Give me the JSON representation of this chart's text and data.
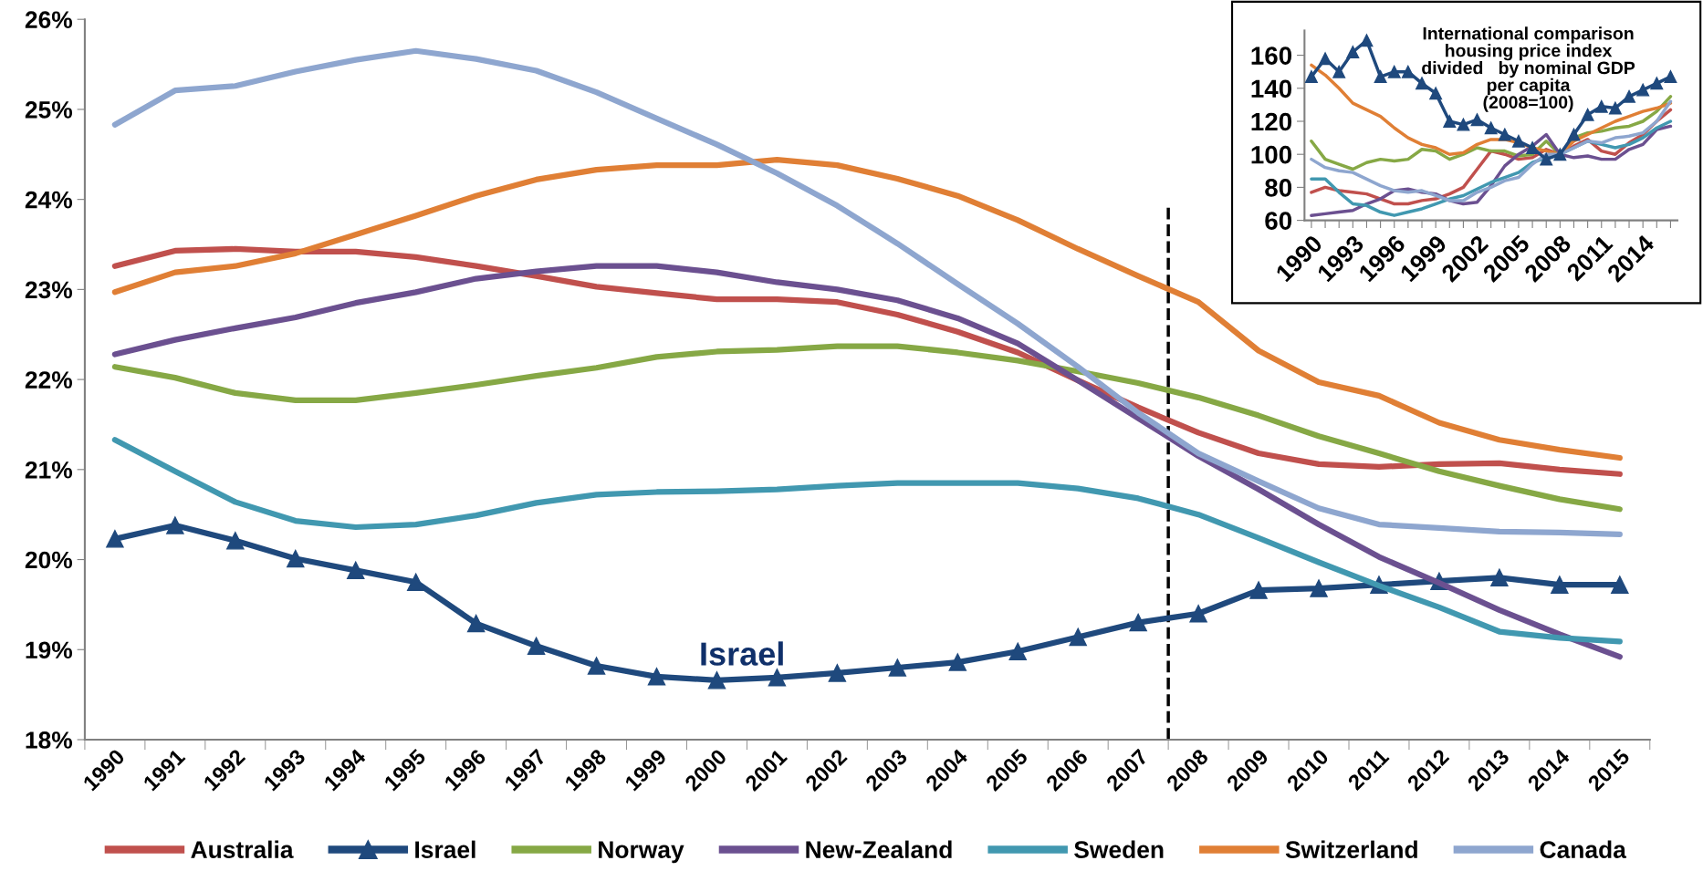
{
  "chart_data": [
    {
      "type": "line",
      "categories": [
        "1990",
        "1991",
        "1992",
        "1993",
        "1994",
        "1995",
        "1996",
        "1997",
        "1998",
        "1999",
        "2000",
        "2001",
        "2002",
        "2003",
        "2004",
        "2005",
        "2006",
        "2007",
        "2008",
        "2009",
        "2010",
        "2011",
        "2012",
        "2013",
        "2014",
        "2015"
      ],
      "ylim": [
        18,
        26
      ],
      "yticks": [
        {
          "value": 18,
          "label": "18%"
        },
        {
          "value": 19,
          "label": "19%"
        },
        {
          "value": 20,
          "label": "20%"
        },
        {
          "value": 21,
          "label": "21%"
        },
        {
          "value": 22,
          "label": "22%"
        },
        {
          "value": 23,
          "label": "23%"
        },
        {
          "value": 24,
          "label": "24%"
        },
        {
          "value": 25,
          "label": "25%"
        },
        {
          "value": 26,
          "label": "26%"
        }
      ],
      "grid": false,
      "legend": "bottom",
      "series": [
        {
          "name": "Australia",
          "color": "#c0504d",
          "values": [
            23.26,
            23.43,
            23.45,
            23.42,
            23.42,
            23.36,
            23.26,
            23.15,
            23.03,
            22.96,
            22.89,
            22.89,
            22.86,
            22.72,
            22.53,
            22.3,
            21.99,
            21.69,
            21.41,
            21.18,
            21.06,
            21.03,
            21.06,
            21.07,
            21.0,
            20.95
          ]
        },
        {
          "name": "Israel",
          "color": "#1f497d",
          "marker": "triangle",
          "values": [
            20.23,
            20.38,
            20.21,
            20.01,
            19.88,
            19.75,
            19.29,
            19.04,
            18.82,
            18.7,
            18.66,
            18.69,
            18.74,
            18.8,
            18.86,
            18.98,
            19.14,
            19.3,
            19.4,
            19.66,
            19.68,
            19.72,
            19.76,
            19.8,
            19.72,
            19.72
          ]
        },
        {
          "name": "Norway",
          "color": "#86a845",
          "values": [
            22.14,
            22.02,
            21.85,
            21.77,
            21.77,
            21.85,
            21.94,
            22.04,
            22.13,
            22.25,
            22.31,
            22.33,
            22.37,
            22.37,
            22.3,
            22.21,
            22.09,
            21.96,
            21.8,
            21.6,
            21.37,
            21.18,
            20.98,
            20.82,
            20.67,
            20.56
          ]
        },
        {
          "name": "New-Zealand",
          "color": "#6b5090",
          "values": [
            22.28,
            22.44,
            22.57,
            22.69,
            22.85,
            22.97,
            23.12,
            23.2,
            23.26,
            23.26,
            23.19,
            23.08,
            23.0,
            22.88,
            22.68,
            22.4,
            21.99,
            21.57,
            21.15,
            20.78,
            20.39,
            20.03,
            19.74,
            19.44,
            19.17,
            18.92
          ]
        },
        {
          "name": "Sweden",
          "color": "#4198b0",
          "values": [
            21.33,
            20.98,
            20.64,
            20.43,
            20.36,
            20.39,
            20.49,
            20.63,
            20.72,
            20.75,
            20.76,
            20.78,
            20.82,
            20.85,
            20.85,
            20.85,
            20.79,
            20.68,
            20.5,
            20.24,
            19.97,
            19.71,
            19.47,
            19.2,
            19.13,
            19.09
          ]
        },
        {
          "name": "Switzerland",
          "color": "#e07f35",
          "values": [
            22.97,
            23.19,
            23.26,
            23.4,
            23.61,
            23.82,
            24.04,
            24.22,
            24.33,
            24.38,
            24.38,
            24.44,
            24.38,
            24.23,
            24.04,
            23.77,
            23.45,
            23.15,
            22.86,
            22.32,
            21.97,
            21.82,
            21.52,
            21.33,
            21.22,
            21.13
          ]
        },
        {
          "name": "Canada",
          "color": "#8ea6cf",
          "values": [
            24.83,
            25.21,
            25.26,
            25.42,
            25.55,
            25.65,
            25.56,
            25.43,
            25.19,
            24.9,
            24.61,
            24.29,
            23.93,
            23.51,
            23.06,
            22.62,
            22.14,
            21.63,
            21.18,
            20.87,
            20.57,
            20.39,
            20.35,
            20.31,
            20.3,
            20.28
          ]
        }
      ],
      "annotations": [
        "Israel"
      ],
      "ref_lines": [
        {
          "axis": "x",
          "value": "2008",
          "color": "#000000",
          "line_style": "dashed"
        }
      ]
    },
    {
      "type": "line",
      "title": "International comparison\nhousing price index\ndivided   by nominal GDP\nper capita\n(2008=100)",
      "categories": [
        "1990",
        null,
        null,
        "1993",
        null,
        null,
        "1996",
        null,
        null,
        "1999",
        null,
        null,
        "2002",
        null,
        null,
        "2005",
        null,
        null,
        "2008",
        null,
        null,
        "2011",
        null,
        null,
        "2014",
        null,
        null
      ],
      "ylim": [
        60,
        175
      ],
      "yticks": [
        60,
        80,
        100,
        120,
        140,
        160
      ],
      "grid": false,
      "series": [
        {
          "color": "#c0504d",
          "values": [
            77,
            80,
            78,
            77,
            76,
            73,
            70,
            70,
            72,
            73,
            76,
            80,
            91,
            102,
            100,
            97,
            98,
            103,
            100,
            105,
            109,
            102,
            100,
            107,
            112,
            120,
            127
          ]
        },
        {
          "color": "#86a845",
          "values": [
            108,
            97,
            94,
            91,
            95,
            97,
            96,
            97,
            103,
            102,
            97,
            100,
            104,
            102,
            102,
            99,
            100,
            108,
            100,
            110,
            113,
            114,
            116,
            117,
            120,
            126,
            135
          ]
        },
        {
          "color": "#6b5090",
          "values": [
            63,
            64,
            65,
            66,
            70,
            73,
            78,
            79,
            77,
            76,
            72,
            70,
            71,
            81,
            93,
            100,
            105,
            112,
            100,
            98,
            99,
            97,
            97,
            103,
            106,
            115,
            117
          ]
        },
        {
          "color": "#4198b0",
          "values": [
            85,
            85,
            77,
            70,
            69,
            65,
            63,
            65,
            67,
            70,
            73,
            75,
            79,
            83,
            86,
            89,
            95,
            98,
            100,
            104,
            108,
            106,
            104,
            106,
            110,
            116,
            120
          ]
        },
        {
          "color": "#e07f35",
          "values": [
            154,
            148,
            140,
            131,
            127,
            123,
            116,
            110,
            106,
            104,
            100,
            101,
            106,
            109,
            109,
            107,
            104,
            102,
            100,
            108,
            112,
            116,
            120,
            123,
            126,
            128,
            131
          ]
        },
        {
          "color": "#8ea6cf",
          "values": [
            97,
            92,
            90,
            89,
            85,
            81,
            78,
            77,
            78,
            75,
            72,
            72,
            77,
            80,
            84,
            86,
            94,
            100,
            100,
            104,
            108,
            107,
            110,
            111,
            113,
            120,
            132
          ]
        },
        {
          "color": "#1f497d",
          "marker": "triangle",
          "values": [
            147,
            158,
            150,
            162,
            169,
            147,
            150,
            150,
            143,
            137,
            120,
            118,
            121,
            116,
            112,
            108,
            104,
            97,
            100,
            112,
            124,
            129,
            128,
            135,
            139,
            143,
            147
          ]
        }
      ]
    }
  ]
}
